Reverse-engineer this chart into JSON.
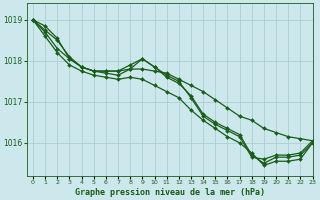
{
  "title": "Graphe pression niveau de la mer (hPa)",
  "bg_color": "#cce8ec",
  "grid_color": "#aacfd4",
  "line_color": "#1a5c1a",
  "xlim": [
    -0.5,
    23
  ],
  "ylim": [
    1015.2,
    1019.4
  ],
  "yticks": [
    1016,
    1017,
    1018,
    1019
  ],
  "xticks": [
    0,
    1,
    2,
    3,
    4,
    5,
    6,
    7,
    8,
    9,
    10,
    11,
    12,
    13,
    14,
    15,
    16,
    17,
    18,
    19,
    20,
    21,
    22,
    23
  ],
  "lines": [
    [
      1019.0,
      1018.85,
      1018.55,
      1018.05,
      1017.85,
      1017.75,
      1017.75,
      1017.75,
      1017.8,
      1017.8,
      1017.75,
      1017.7,
      1017.55,
      1017.4,
      1017.25,
      1017.05,
      1016.85,
      1016.65,
      1016.55,
      1016.35,
      1016.25,
      1016.15,
      1016.1,
      1016.05
    ],
    [
      1019.0,
      1018.75,
      1018.5,
      1018.1,
      1017.85,
      1017.75,
      1017.75,
      1017.75,
      1017.9,
      1018.05,
      1017.85,
      1017.65,
      1017.5,
      1017.1,
      1016.65,
      1016.45,
      1016.3,
      1016.15,
      1015.65,
      1015.6,
      1015.7,
      1015.7,
      1015.75,
      1016.05
    ],
    [
      1019.0,
      1018.7,
      1018.3,
      1018.05,
      1017.85,
      1017.75,
      1017.7,
      1017.65,
      1017.8,
      1018.05,
      1017.85,
      1017.6,
      1017.45,
      1017.15,
      1016.7,
      1016.5,
      1016.35,
      1016.2,
      1015.7,
      1015.5,
      1015.65,
      1015.65,
      1015.7,
      1016.0
    ],
    [
      1019.0,
      1018.6,
      1018.2,
      1017.9,
      1017.75,
      1017.65,
      1017.6,
      1017.55,
      1017.6,
      1017.55,
      1017.4,
      1017.25,
      1017.1,
      1016.8,
      1016.55,
      1016.35,
      1016.15,
      1016.0,
      1015.75,
      1015.45,
      1015.55,
      1015.55,
      1015.6,
      1016.0
    ]
  ]
}
